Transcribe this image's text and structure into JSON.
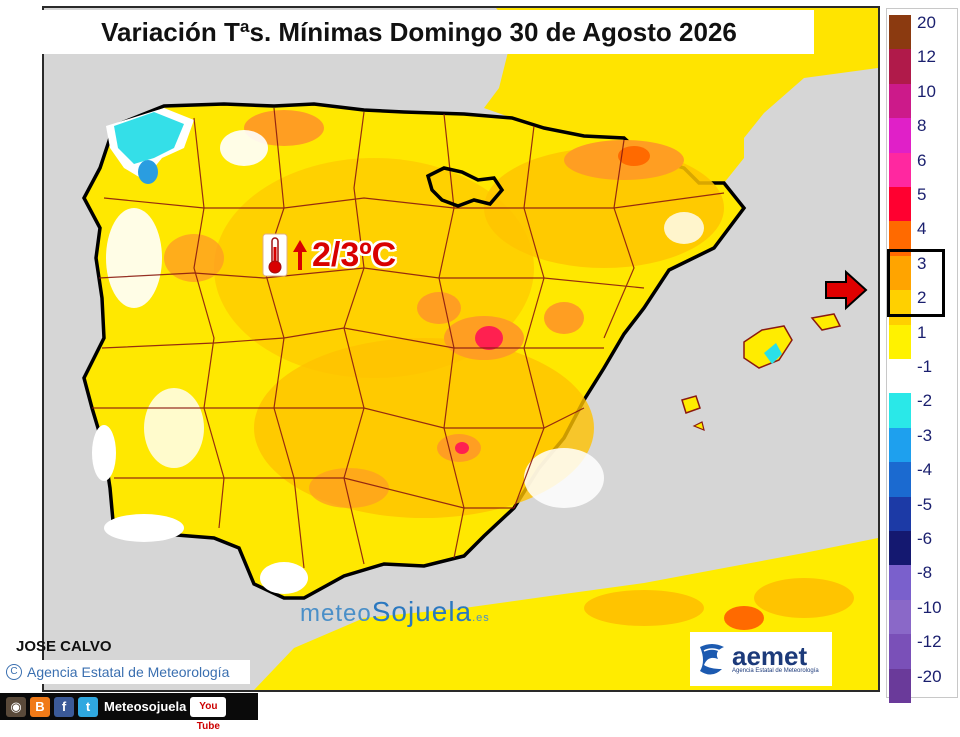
{
  "title": "Variación Tªs. Mínimas Domingo 30 de Agosto 2026",
  "anomaly": {
    "label": "2/3ºC",
    "icon": "thermometer-icon",
    "direction": "up-arrow-icon"
  },
  "watermark": {
    "part1": "meteo",
    "part2": "Sojuela",
    "suffix": ".es"
  },
  "author": "JOSE CALVO",
  "credit": {
    "symbol": "C",
    "text": "Agencia Estatal de Meteorología"
  },
  "aemet": {
    "name": "aemet",
    "subtitle": "Agencia Estatal de Meteorología"
  },
  "social": {
    "name": "Meteosojuela",
    "youtube": "You Tube",
    "icons": [
      "instagram-icon",
      "blogger-icon",
      "facebook-icon",
      "twitter-icon"
    ]
  },
  "colors": {
    "sea": "#d6d6d6",
    "land_base": "#ffee00",
    "warm1": "#ffcc00",
    "warm2": "#ff9e22",
    "warm3": "#ff6a00",
    "hot": "#ff2050",
    "cold1": "#34dfe8",
    "cold2": "#2a9de0",
    "white": "#ffffff"
  },
  "legend": [
    {
      "label": "20",
      "color": "#8b3a10"
    },
    {
      "label": "12",
      "color": "#b01a4a"
    },
    {
      "label": "10",
      "color": "#cc1a8a"
    },
    {
      "label": "8",
      "color": "#e020c8"
    },
    {
      "label": "6",
      "color": "#ff28a0"
    },
    {
      "label": "5",
      "color": "#ff0030"
    },
    {
      "label": "4",
      "color": "#ff6a00"
    },
    {
      "label": "3",
      "color": "#ffa400"
    },
    {
      "label": "2",
      "color": "#ffd000"
    },
    {
      "label": "1",
      "color": "#fff200"
    },
    {
      "label": "-1",
      "color": "#ffffff"
    },
    {
      "label": "-2",
      "color": "#2ae8e8"
    },
    {
      "label": "-3",
      "color": "#1ea0ee"
    },
    {
      "label": "-4",
      "color": "#1b6ad0"
    },
    {
      "label": "-5",
      "color": "#1c3aa6"
    },
    {
      "label": "-6",
      "color": "#141870"
    },
    {
      "label": "-8",
      "color": "#7a60cc"
    },
    {
      "label": "-10",
      "color": "#8a68c8"
    },
    {
      "label": "-12",
      "color": "#7a50b8"
    },
    {
      "label": "-20",
      "color": "#6a3a9a"
    }
  ]
}
